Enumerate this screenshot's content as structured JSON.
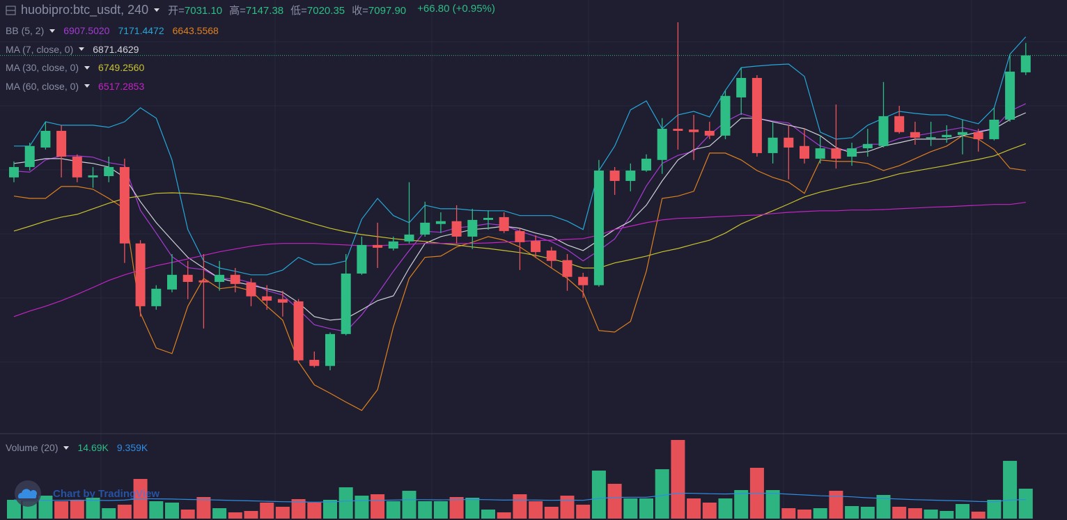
{
  "chart_data": {
    "type": "candlestick",
    "title": "huobipro:btc_usdt, 240",
    "ohlc_labels": [
      "开=",
      "高=",
      "低=",
      "收="
    ],
    "ohlc_values": [
      "7031.10",
      "7147.38",
      "7020.35",
      "7097.90"
    ],
    "change": "+66.80 (+0.95%)",
    "up_color": "#2ebd85",
    "down_color": "#f0545a",
    "ylim": [
      5606,
      7317
    ],
    "open": [
      6616,
      6657,
      6734,
      6800,
      6698,
      6616,
      6621,
      6657,
      6355,
      6107,
      6173,
      6231,
      6209,
      6203,
      6231,
      6201,
      6146,
      6135,
      6126,
      5895,
      5871,
      5997,
      6236,
      6349,
      6335,
      6363,
      6390,
      6432,
      6443,
      6382,
      6448,
      6459,
      6404,
      6365,
      6327,
      6289,
      6223,
      6190,
      6643,
      6602,
      6643,
      6685,
      6808,
      6805,
      6800,
      6781,
      6932,
      7009,
      6712,
      6773,
      6740,
      6690,
      6731,
      6698,
      6731,
      6740,
      6858,
      6795,
      6770,
      6775,
      6784,
      6795,
      6767,
      6844,
      7031.1
    ],
    "high": [
      6679,
      6753,
      6836,
      6822,
      6707,
      6657,
      6698,
      6690,
      6368,
      6190,
      6313,
      6286,
      6313,
      6286,
      6258,
      6217,
      6190,
      6168,
      6135,
      5928,
      6003,
      6313,
      6382,
      6437,
      6382,
      6597,
      6520,
      6478,
      6506,
      6492,
      6486,
      6478,
      6415,
      6387,
      6341,
      6313,
      6239,
      6685,
      6657,
      6671,
      6707,
      6850,
      7229,
      6863,
      6836,
      6960,
      7050,
      7020,
      6836,
      6822,
      6808,
      6781,
      6904,
      6753,
      6808,
      6993,
      6899,
      6836,
      6836,
      6822,
      6844,
      6808,
      6891,
      7102,
      7147.38
    ],
    "low": [
      6597,
      6643,
      6726,
      6616,
      6597,
      6575,
      6597,
      6278,
      6066,
      6093,
      6162,
      6135,
      6019,
      6168,
      6162,
      6107,
      6093,
      6066,
      5882,
      5865,
      5854,
      5992,
      6231,
      6258,
      6327,
      6355,
      6382,
      6396,
      6355,
      6333,
      6409,
      6396,
      6250,
      6299,
      6258,
      6168,
      6140,
      6184,
      6547,
      6561,
      6638,
      6630,
      6726,
      6685,
      6767,
      6767,
      6863,
      6698,
      6671,
      6608,
      6671,
      6671,
      6651,
      6662,
      6698,
      6734,
      6789,
      6745,
      6740,
      6753,
      6707,
      6718,
      6762,
      6836,
      7020.35
    ],
    "close": [
      6657,
      6740,
      6800,
      6698,
      6616,
      6624,
      6657,
      6355,
      6107,
      6176,
      6231,
      6203,
      6201,
      6231,
      6195,
      6146,
      6129,
      6121,
      5893,
      5871,
      5997,
      6236,
      6349,
      6338,
      6363,
      6390,
      6437,
      6443,
      6382,
      6448,
      6456,
      6404,
      6360,
      6321,
      6286,
      6223,
      6190,
      6643,
      6602,
      6643,
      6690,
      6808,
      6800,
      6795,
      6781,
      6938,
      7009,
      6712,
      6773,
      6734,
      6690,
      6731,
      6690,
      6731,
      6748,
      6858,
      6795,
      6773,
      6775,
      6784,
      6795,
      6767,
      6844,
      7034,
      7097.9
    ],
    "overlays": [
      {
        "name": "BB (5, 2)",
        "series": [
          {
            "color": "#a83ad4",
            "legend_value": "6907.5020",
            "values": [
              6641,
              6637,
              6685,
              6701,
              6701,
              6696,
              6674,
              6664,
              6486,
              6396,
              6303,
              6259,
              6252,
              6217,
              6215,
              6200,
              6169,
              6151,
              6094,
              6034,
              6018,
              6007,
              6073,
              6155,
              6245,
              6327,
              6403,
              6399,
              6417,
              6423,
              6433,
              6426,
              6403,
              6383,
              6362,
              6330,
              6286,
              6327,
              6373,
              6465,
              6582,
              6671,
              6703,
              6719,
              6784,
              6836,
              6868,
              6850,
              6839,
              6831,
              6784,
              6740,
              6723,
              6726,
              6747,
              6747,
              6770,
              6780,
              6791,
              6802,
              6813,
              6798,
              6809,
              6878,
              6907.502
            ]
          },
          {
            "color": "#26a7d8",
            "legend_value": "7171.4472",
            "values": [
              6740,
              6740,
              6836,
              6822,
              6822,
              6822,
              6814,
              6836,
              6891,
              6850,
              6685,
              6410,
              6286,
              6258,
              6245,
              6231,
              6231,
              6250,
              6300,
              6272,
              6272,
              6286,
              6451,
              6533,
              6465,
              6437,
              6506,
              6492,
              6492,
              6486,
              6484,
              6484,
              6465,
              6465,
              6465,
              6443,
              6410,
              6643,
              6740,
              6883,
              6918,
              6808,
              6863,
              6877,
              6855,
              6960,
              7050,
              7056,
              7061,
              7064,
              7015,
              6795,
              6767,
              6773,
              6822,
              6850,
              6877,
              6869,
              6863,
              6863,
              6844,
              6828,
              6891,
              7103,
              7171.4472
            ]
          },
          {
            "color": "#e0801e",
            "legend_value": "6643.5568",
            "values": [
              6542,
              6533,
              6533,
              6580,
              6580,
              6569,
              6533,
              6492,
              6080,
              5942,
              5920,
              6107,
              6217,
              6176,
              6184,
              6168,
              6107,
              6052,
              5887,
              5796,
              5763,
              5728,
              5695,
              5777,
              6025,
              6217,
              6300,
              6305,
              6341,
              6360,
              6382,
              6368,
              6341,
              6300,
              6258,
              6217,
              6162,
              6011,
              6005,
              6047,
              6245,
              6533,
              6542,
              6561,
              6712,
              6712,
              6685,
              6643,
              6616,
              6597,
              6553,
              6685,
              6679,
              6679,
              6671,
              6643,
              6662,
              6690,
              6718,
              6740,
              6781,
              6767,
              6726,
              6652,
              6643.5568
            ]
          }
        ]
      },
      {
        "name": "MA (7, close, 0)",
        "series": [
          {
            "color": "#d0d2da",
            "legend_value": "6871.4629",
            "values": [
              6671,
              6679,
              6690,
              6690,
              6679,
              6671,
              6657,
              6616,
              6520,
              6437,
              6368,
              6300,
              6258,
              6217,
              6203,
              6190,
              6176,
              6162,
              6121,
              6066,
              6052,
              6058,
              6093,
              6129,
              6148,
              6258,
              6355,
              6382,
              6396,
              6410,
              6415,
              6423,
              6415,
              6396,
              6382,
              6349,
              6327,
              6368,
              6410,
              6443,
              6506,
              6602,
              6685,
              6726,
              6740,
              6795,
              6850,
              6850,
              6836,
              6822,
              6808,
              6781,
              6734,
              6712,
              6718,
              6740,
              6753,
              6767,
              6767,
              6767,
              6781,
              6795,
              6808,
              6844,
              6871.4629
            ]
          }
        ]
      },
      {
        "name": "MA (30, close, 0)",
        "series": [
          {
            "color": "#c9c22e",
            "legend_value": "6749.2560",
            "values": [
              6404,
              6423,
              6443,
              6459,
              6470,
              6492,
              6514,
              6533,
              6542,
              6553,
              6555,
              6553,
              6547,
              6539,
              6525,
              6511,
              6492,
              6470,
              6451,
              6432,
              6415,
              6401,
              6390,
              6382,
              6374,
              6368,
              6363,
              6355,
              6349,
              6341,
              6335,
              6327,
              6319,
              6308,
              6294,
              6278,
              6258,
              6258,
              6278,
              6291,
              6305,
              6322,
              6335,
              6352,
              6368,
              6396,
              6432,
              6459,
              6484,
              6511,
              6539,
              6558,
              6572,
              6586,
              6597,
              6613,
              6630,
              6641,
              6652,
              6663,
              6676,
              6687,
              6701,
              6726,
              6749.256
            ]
          }
        ]
      },
      {
        "name": "MA (60, close, 0)",
        "series": [
          {
            "color": "#c424c4",
            "legend_value": "6517.2853",
            "values": [
              6066,
              6088,
              6107,
              6129,
              6154,
              6181,
              6209,
              6231,
              6250,
              6267,
              6280,
              6294,
              6308,
              6322,
              6333,
              6344,
              6352,
              6355,
              6355,
              6355,
              6352,
              6349,
              6346,
              6346,
              6349,
              6352,
              6355,
              6355,
              6355,
              6355,
              6357,
              6360,
              6363,
              6366,
              6368,
              6371,
              6374,
              6388,
              6410,
              6423,
              6437,
              6448,
              6454,
              6456,
              6459,
              6462,
              6465,
              6467,
              6473,
              6478,
              6481,
              6484,
              6484,
              6487,
              6487,
              6489,
              6492,
              6495,
              6498,
              6500,
              6503,
              6506,
              6509,
              6509,
              6517.2853
            ]
          }
        ]
      }
    ],
    "volume": {
      "name": "Volume (20)",
      "legend_value": "14.69K",
      "ylim": [
        0,
        41000
      ],
      "values": [
        9220,
        8540,
        11270,
        8540,
        9220,
        10250,
        5120,
        6830,
        19470,
        8540,
        7860,
        4440,
        10590,
        5120,
        3070,
        3760,
        7860,
        5810,
        9560,
        7860,
        9220,
        15370,
        11270,
        11960,
        8540,
        13660,
        8540,
        8540,
        10590,
        10250,
        4440,
        3070,
        11960,
        8540,
        5810,
        11270,
        6830,
        23570,
        17080,
        9910,
        9910,
        24250,
        38600,
        9910,
        7860,
        9910,
        14010,
        24940,
        14010,
        5120,
        4440,
        5120,
        13660,
        6150,
        5810,
        11610,
        5810,
        5120,
        4440,
        3760,
        7170,
        3420,
        9220,
        28350,
        14690
      ],
      "ma": {
        "color": "#2f8de4",
        "legend_value": "9.359K",
        "values": [
          9200,
          9100,
          9000,
          9000,
          9100,
          9000,
          8900,
          9100,
          9800,
          9700,
          9600,
          9400,
          9300,
          9100,
          8900,
          8700,
          8500,
          8300,
          8200,
          8100,
          8200,
          8600,
          8800,
          9000,
          9100,
          9300,
          9300,
          9200,
          9300,
          9400,
          9300,
          9100,
          9200,
          9100,
          9000,
          9100,
          9000,
          9900,
          10400,
          10500,
          10500,
          11300,
          12500,
          12400,
          12200,
          12100,
          12300,
          12500,
          12400,
          12000,
          11600,
          11200,
          11000,
          10700,
          10200,
          9900,
          9600,
          9300,
          9100,
          8900,
          8700,
          8400,
          8300,
          9100,
          9359
        ]
      }
    },
    "watermark": "Chart by TradingView"
  }
}
